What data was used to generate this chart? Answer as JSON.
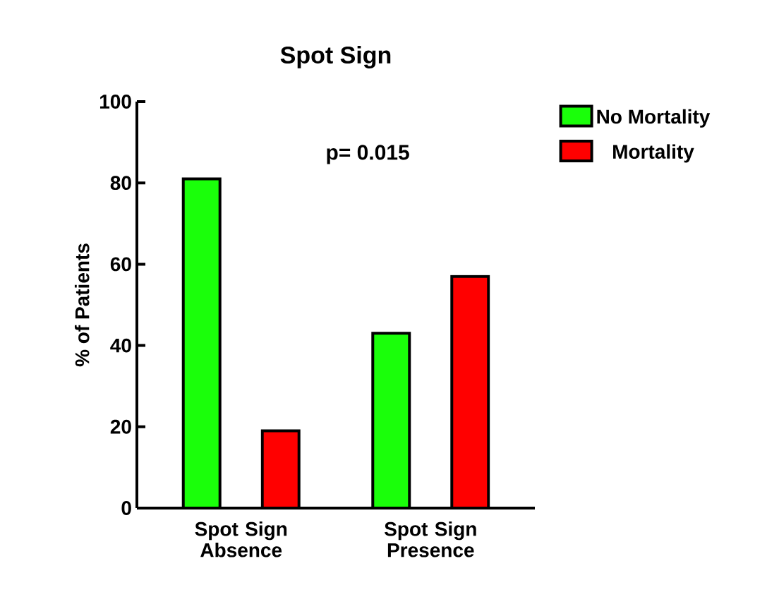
{
  "chart_data": {
    "type": "bar",
    "title": "Spot Sign",
    "ylabel": "% of Patients",
    "categories": [
      "Spot Sign Absence",
      "Spot Sign Presence"
    ],
    "series": [
      {
        "name": "No Mortality",
        "color": "#1aff0a",
        "values": [
          81,
          43
        ]
      },
      {
        "name": "Mortality",
        "color": "#ff0000",
        "values": [
          19,
          57
        ]
      }
    ],
    "ylim": [
      0,
      100
    ],
    "yticks": [
      0,
      20,
      40,
      60,
      80,
      100
    ],
    "annotations": [
      "p= 0.015"
    ],
    "legend": "top right",
    "grid": false
  }
}
